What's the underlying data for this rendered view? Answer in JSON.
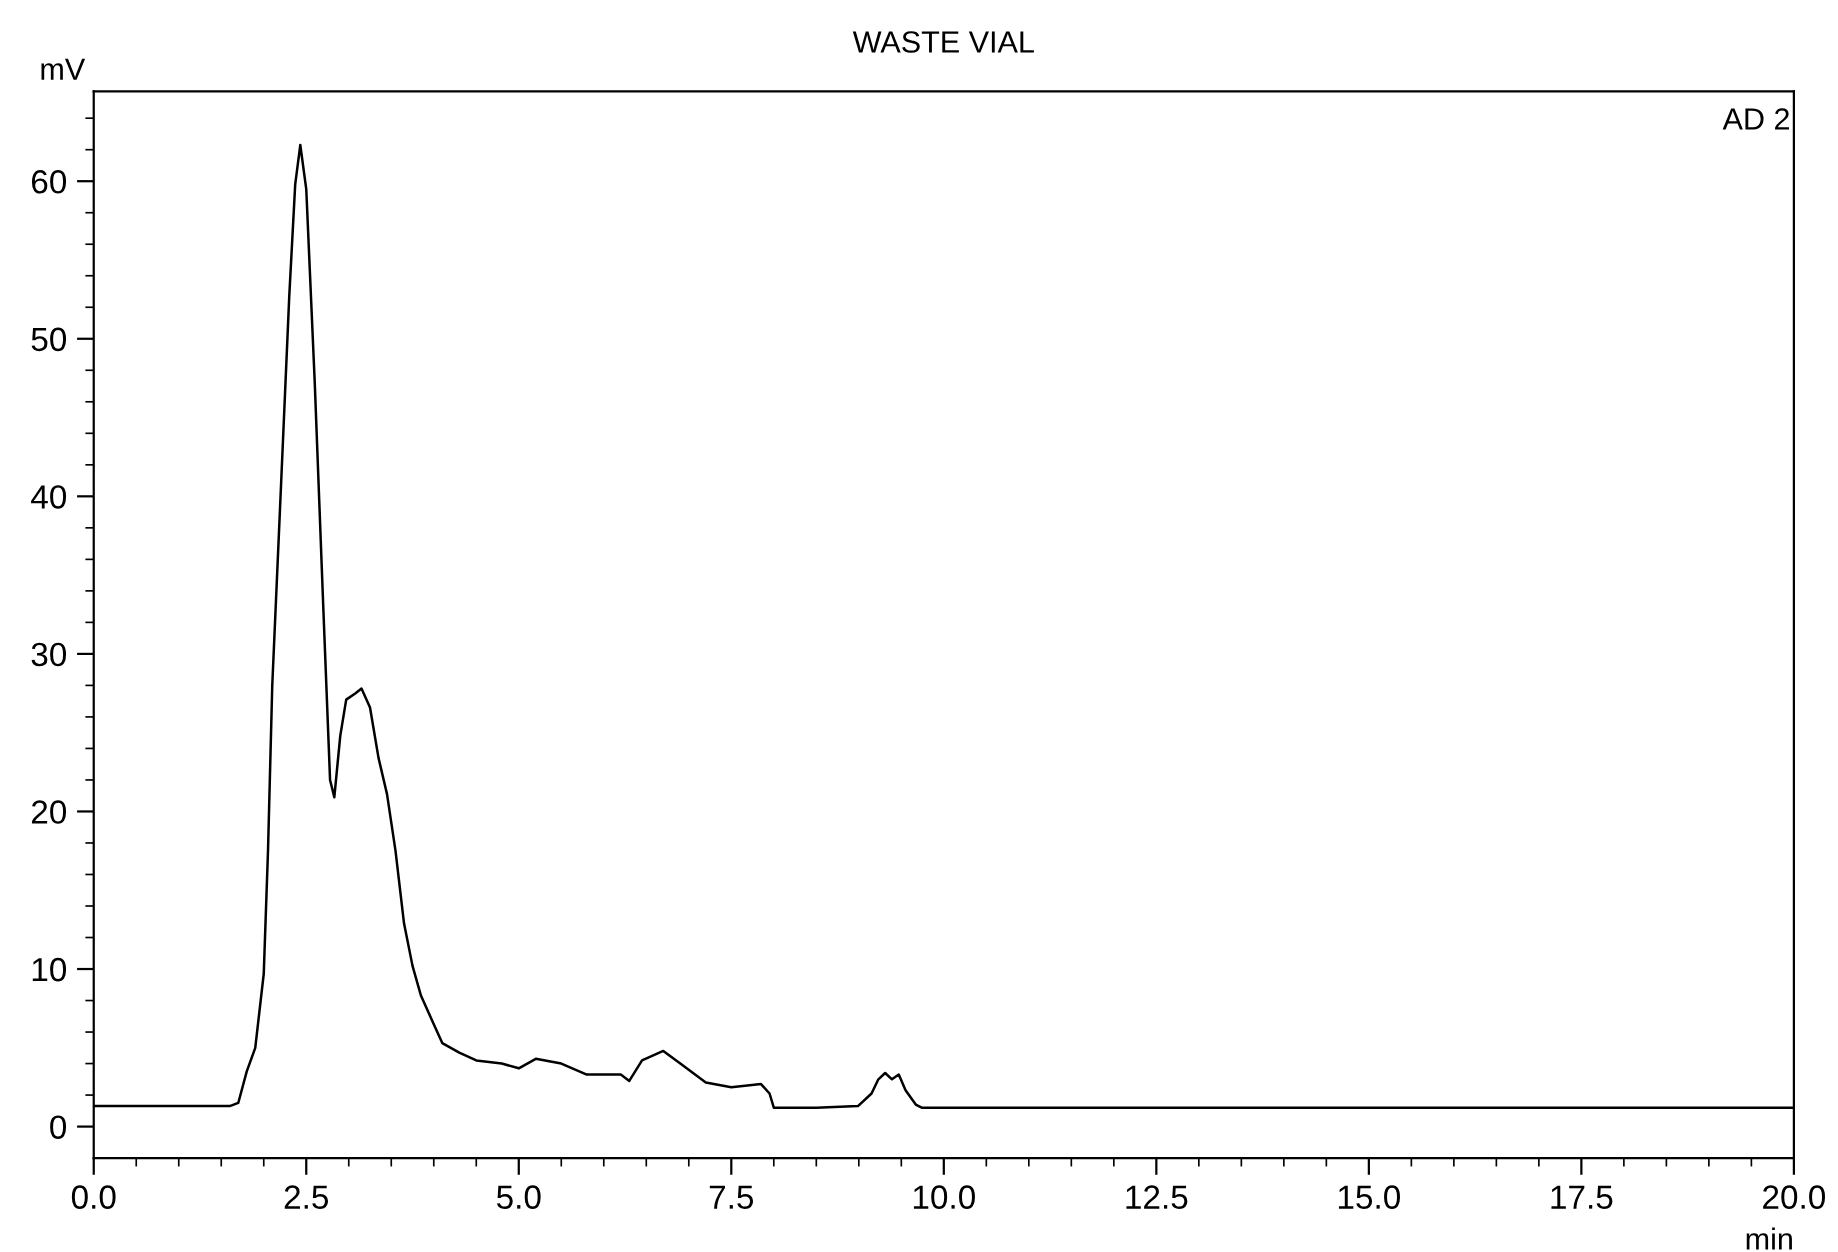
{
  "chart_data": {
    "type": "line",
    "title": "WASTE VIAL",
    "xlabel": "min",
    "ylabel": "mV",
    "annotations": [
      "AD 2"
    ],
    "series": [
      {
        "color": "#000000",
        "x": [
          0,
          1.6,
          1.7,
          1.8,
          1.9,
          2.0,
          2.05,
          2.1,
          2.2,
          2.3,
          2.37,
          2.43,
          2.5,
          2.6,
          2.7,
          2.78,
          2.83,
          2.9,
          2.97,
          3.08,
          3.15,
          3.25,
          3.35,
          3.45,
          3.55,
          3.65,
          3.75,
          3.85,
          4.0,
          4.1,
          4.3,
          4.5,
          4.8,
          5.0,
          5.2,
          5.5,
          5.8,
          6.2,
          6.3,
          6.45,
          6.7,
          6.9,
          7.2,
          7.5,
          7.85,
          7.95,
          8.0,
          8.5,
          8.99,
          9.15,
          9.23,
          9.31,
          9.39,
          9.47,
          9.55,
          9.67,
          9.74,
          12.5,
          15.0,
          17.5,
          20.0
        ],
        "values": [
          1.3,
          1.3,
          1.5,
          3.5,
          5.0,
          9.7,
          17.5,
          28,
          40.3,
          52.7,
          59.8,
          62.3,
          59.5,
          47.2,
          33,
          22,
          20.9,
          24.8,
          27.1,
          27.5,
          27.8,
          26.6,
          23.4,
          21.1,
          17.5,
          12.9,
          10.2,
          8.3,
          6.5,
          5.3,
          4.7,
          4.2,
          4.0,
          3.7,
          4.3,
          4.0,
          3.3,
          3.3,
          2.9,
          4.2,
          4.8,
          4.0,
          2.8,
          2.5,
          2.7,
          2.1,
          1.2,
          1.2,
          1.3,
          2.1,
          3.0,
          3.4,
          3.0,
          3.3,
          2.3,
          1.4,
          1.2,
          1.2,
          1.2,
          1.2,
          1.2
        ]
      }
    ],
    "xlim": [
      0,
      20
    ],
    "ylim": [
      -2,
      65.7
    ],
    "xticks": [
      {
        "value": 0,
        "label": "0.0"
      },
      {
        "value": 0.5,
        "label": null
      },
      {
        "value": 1,
        "label": null
      },
      {
        "value": 1.5,
        "label": null
      },
      {
        "value": 2,
        "label": null
      },
      {
        "value": 2.5,
        "label": "2.5"
      },
      {
        "value": 3,
        "label": null
      },
      {
        "value": 3.5,
        "label": null
      },
      {
        "value": 4,
        "label": null
      },
      {
        "value": 4.5,
        "label": null
      },
      {
        "value": 5,
        "label": "5.0"
      },
      {
        "value": 5.5,
        "label": null
      },
      {
        "value": 6,
        "label": null
      },
      {
        "value": 6.5,
        "label": null
      },
      {
        "value": 7,
        "label": null
      },
      {
        "value": 7.5,
        "label": "7.5"
      },
      {
        "value": 8,
        "label": null
      },
      {
        "value": 8.5,
        "label": null
      },
      {
        "value": 9,
        "label": null
      },
      {
        "value": 9.5,
        "label": null
      },
      {
        "value": 10,
        "label": "10.0"
      },
      {
        "value": 10.5,
        "label": null
      },
      {
        "value": 11,
        "label": null
      },
      {
        "value": 11.5,
        "label": null
      },
      {
        "value": 12,
        "label": null
      },
      {
        "value": 12.5,
        "label": "12.5"
      },
      {
        "value": 13,
        "label": null
      },
      {
        "value": 13.5,
        "label": null
      },
      {
        "value": 14,
        "label": null
      },
      {
        "value": 14.5,
        "label": null
      },
      {
        "value": 15,
        "label": "15.0"
      },
      {
        "value": 15.5,
        "label": null
      },
      {
        "value": 16,
        "label": null
      },
      {
        "value": 16.5,
        "label": null
      },
      {
        "value": 17,
        "label": null
      },
      {
        "value": 17.5,
        "label": "17.5"
      },
      {
        "value": 18,
        "label": null
      },
      {
        "value": 18.5,
        "label": null
      },
      {
        "value": 19,
        "label": null
      },
      {
        "value": 19.5,
        "label": null
      },
      {
        "value": 20,
        "label": "20.0"
      }
    ],
    "yticks": [
      0,
      {
        "value": 2,
        "label": null
      },
      {
        "value": 4,
        "label": null
      },
      {
        "value": 6,
        "label": null
      },
      {
        "value": 8,
        "label": null
      },
      10,
      {
        "value": 12,
        "label": null
      },
      {
        "value": 14,
        "label": null
      },
      {
        "value": 16,
        "label": null
      },
      {
        "value": 18,
        "label": null
      },
      20,
      {
        "value": 22,
        "label": null
      },
      {
        "value": 24,
        "label": null
      },
      {
        "value": 26,
        "label": null
      },
      {
        "value": 28,
        "label": null
      },
      30,
      {
        "value": 32,
        "label": null
      },
      {
        "value": 34,
        "label": null
      },
      {
        "value": 36,
        "label": null
      },
      {
        "value": 38,
        "label": null
      },
      40,
      {
        "value": 42,
        "label": null
      },
      {
        "value": 44,
        "label": null
      },
      {
        "value": 46,
        "label": null
      },
      {
        "value": 48,
        "label": null
      },
      50,
      {
        "value": 52,
        "label": null
      },
      {
        "value": 54,
        "label": null
      },
      {
        "value": 56,
        "label": null
      },
      {
        "value": 58,
        "label": null
      },
      60,
      {
        "value": 62,
        "label": null
      },
      {
        "value": 64,
        "label": null
      }
    ],
    "grid": false,
    "legend": false
  }
}
